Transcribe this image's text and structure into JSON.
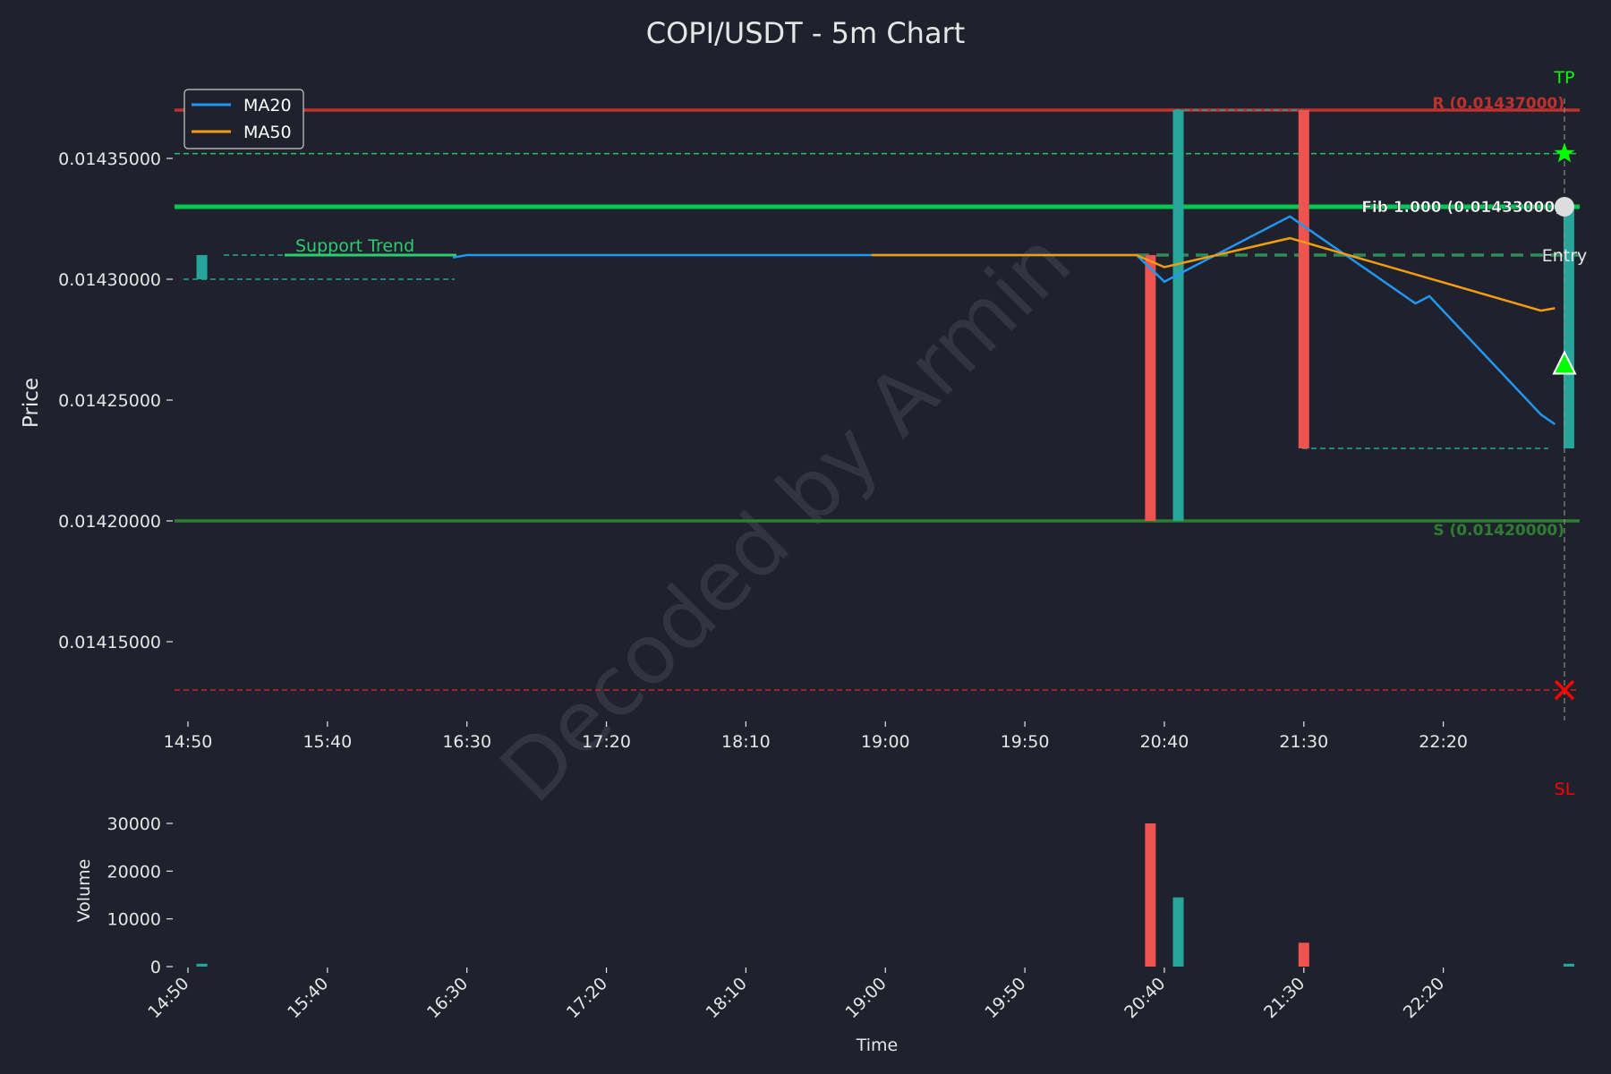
{
  "chart_data": [
    {
      "type": "candlestick",
      "title": "COPI/USDT - 5m Chart",
      "ylabel": "Price",
      "xlabel": "",
      "ylim": [
        0.014125,
        0.01438
      ],
      "x_tick_labels": [
        "14:50",
        "15:40",
        "16:30",
        "17:20",
        "18:10",
        "19:00",
        "19:50",
        "20:40",
        "21:30",
        "22:20"
      ],
      "y_tick_labels": [
        "0.01415000",
        "0.01420000",
        "0.01425000",
        "0.01430000",
        "0.01435000"
      ],
      "y_ticks": [
        0.01415,
        0.0142,
        0.01425,
        0.0143,
        0.01435
      ],
      "candles": [
        {
          "time": "14:55",
          "open": 0.0143,
          "high": 0.01431,
          "low": 0.0143,
          "close": 0.01431,
          "color": "up"
        },
        {
          "time": "20:35",
          "open": 0.01431,
          "high": 0.01431,
          "low": 0.0142,
          "close": 0.0142,
          "color": "down"
        },
        {
          "time": "20:45",
          "open": 0.0142,
          "high": 0.01437,
          "low": 0.0142,
          "close": 0.01437,
          "color": "up"
        },
        {
          "time": "21:30",
          "open": 0.01437,
          "high": 0.01437,
          "low": 0.01423,
          "close": 0.01423,
          "color": "down"
        },
        {
          "time": "23:05",
          "open": 0.01423,
          "high": 0.01433,
          "low": 0.01423,
          "close": 0.01433,
          "color": "up"
        }
      ],
      "series": [
        {
          "name": "MA20",
          "color": "#2196f3",
          "points": [
            [
              "16:25",
              0.014309
            ],
            [
              "16:30",
              0.01431
            ],
            [
              "19:00",
              0.01431
            ],
            [
              "20:30",
              0.01431
            ],
            [
              "20:40",
              0.014299
            ],
            [
              "20:45",
              0.014302
            ],
            [
              "21:25",
              0.014326
            ],
            [
              "22:10",
              0.01429
            ],
            [
              "22:15",
              0.014293
            ],
            [
              "22:55",
              0.014244
            ],
            [
              "23:00",
              0.01424
            ]
          ]
        },
        {
          "name": "MA50",
          "color": "#f39c12",
          "points": [
            [
              "18:55",
              0.01431
            ],
            [
              "20:30",
              0.01431
            ],
            [
              "20:40",
              0.014305
            ],
            [
              "21:25",
              0.014317
            ],
            [
              "22:55",
              0.014287
            ],
            [
              "23:00",
              0.014288
            ]
          ]
        }
      ],
      "levels": {
        "resistance": {
          "value": 0.01437,
          "label": "R (0.01437000)",
          "color": "#c0302e"
        },
        "support": {
          "value": 0.0142,
          "label": "S (0.01420000)",
          "color": "#2e7d32"
        },
        "fib": {
          "value": 0.01433,
          "label": "Fib 1.000 (0.01433000)",
          "color": "#00c853"
        },
        "tp_line": {
          "value": 0.014352,
          "color": "#22c55e"
        },
        "entry_line": {
          "value": 0.01431,
          "color": "#2e8b57"
        },
        "sl_line": {
          "value": 0.01413,
          "color": "#cc2222"
        }
      },
      "support_trend": {
        "label": "Support Trend",
        "color": "#2ecc71",
        "value": 0.01431
      },
      "markers": {
        "tp": {
          "label": "TP",
          "color": "#00ff00"
        },
        "sl": {
          "label": "SL",
          "color": "#ff0000"
        },
        "entry": {
          "label": "Entry",
          "color": "#e6e6e6"
        }
      },
      "legend": {
        "placement": "top-left",
        "entries": [
          "MA20",
          "MA50"
        ]
      },
      "watermark": "Decoded by Armin",
      "grid": false
    },
    {
      "type": "bar",
      "title": "",
      "xlabel": "Time",
      "ylabel": "Volume",
      "ylim": [
        0,
        30000
      ],
      "y_ticks": [
        0,
        10000,
        20000,
        30000
      ],
      "y_tick_labels": [
        "0",
        "10000",
        "20000",
        "30000"
      ],
      "x_tick_labels": [
        "14:50",
        "15:40",
        "16:30",
        "17:20",
        "18:10",
        "19:00",
        "19:50",
        "20:40",
        "21:30",
        "22:20"
      ],
      "bars": [
        {
          "time": "14:55",
          "value": 600,
          "color": "up"
        },
        {
          "time": "20:35",
          "value": 30000,
          "color": "down"
        },
        {
          "time": "20:45",
          "value": 14500,
          "color": "up"
        },
        {
          "time": "21:30",
          "value": 5000,
          "color": "down"
        },
        {
          "time": "23:05",
          "value": 600,
          "color": "up"
        }
      ]
    }
  ],
  "colors": {
    "up": "#26a69a",
    "down": "#ef5350",
    "background": "#1f222d"
  }
}
